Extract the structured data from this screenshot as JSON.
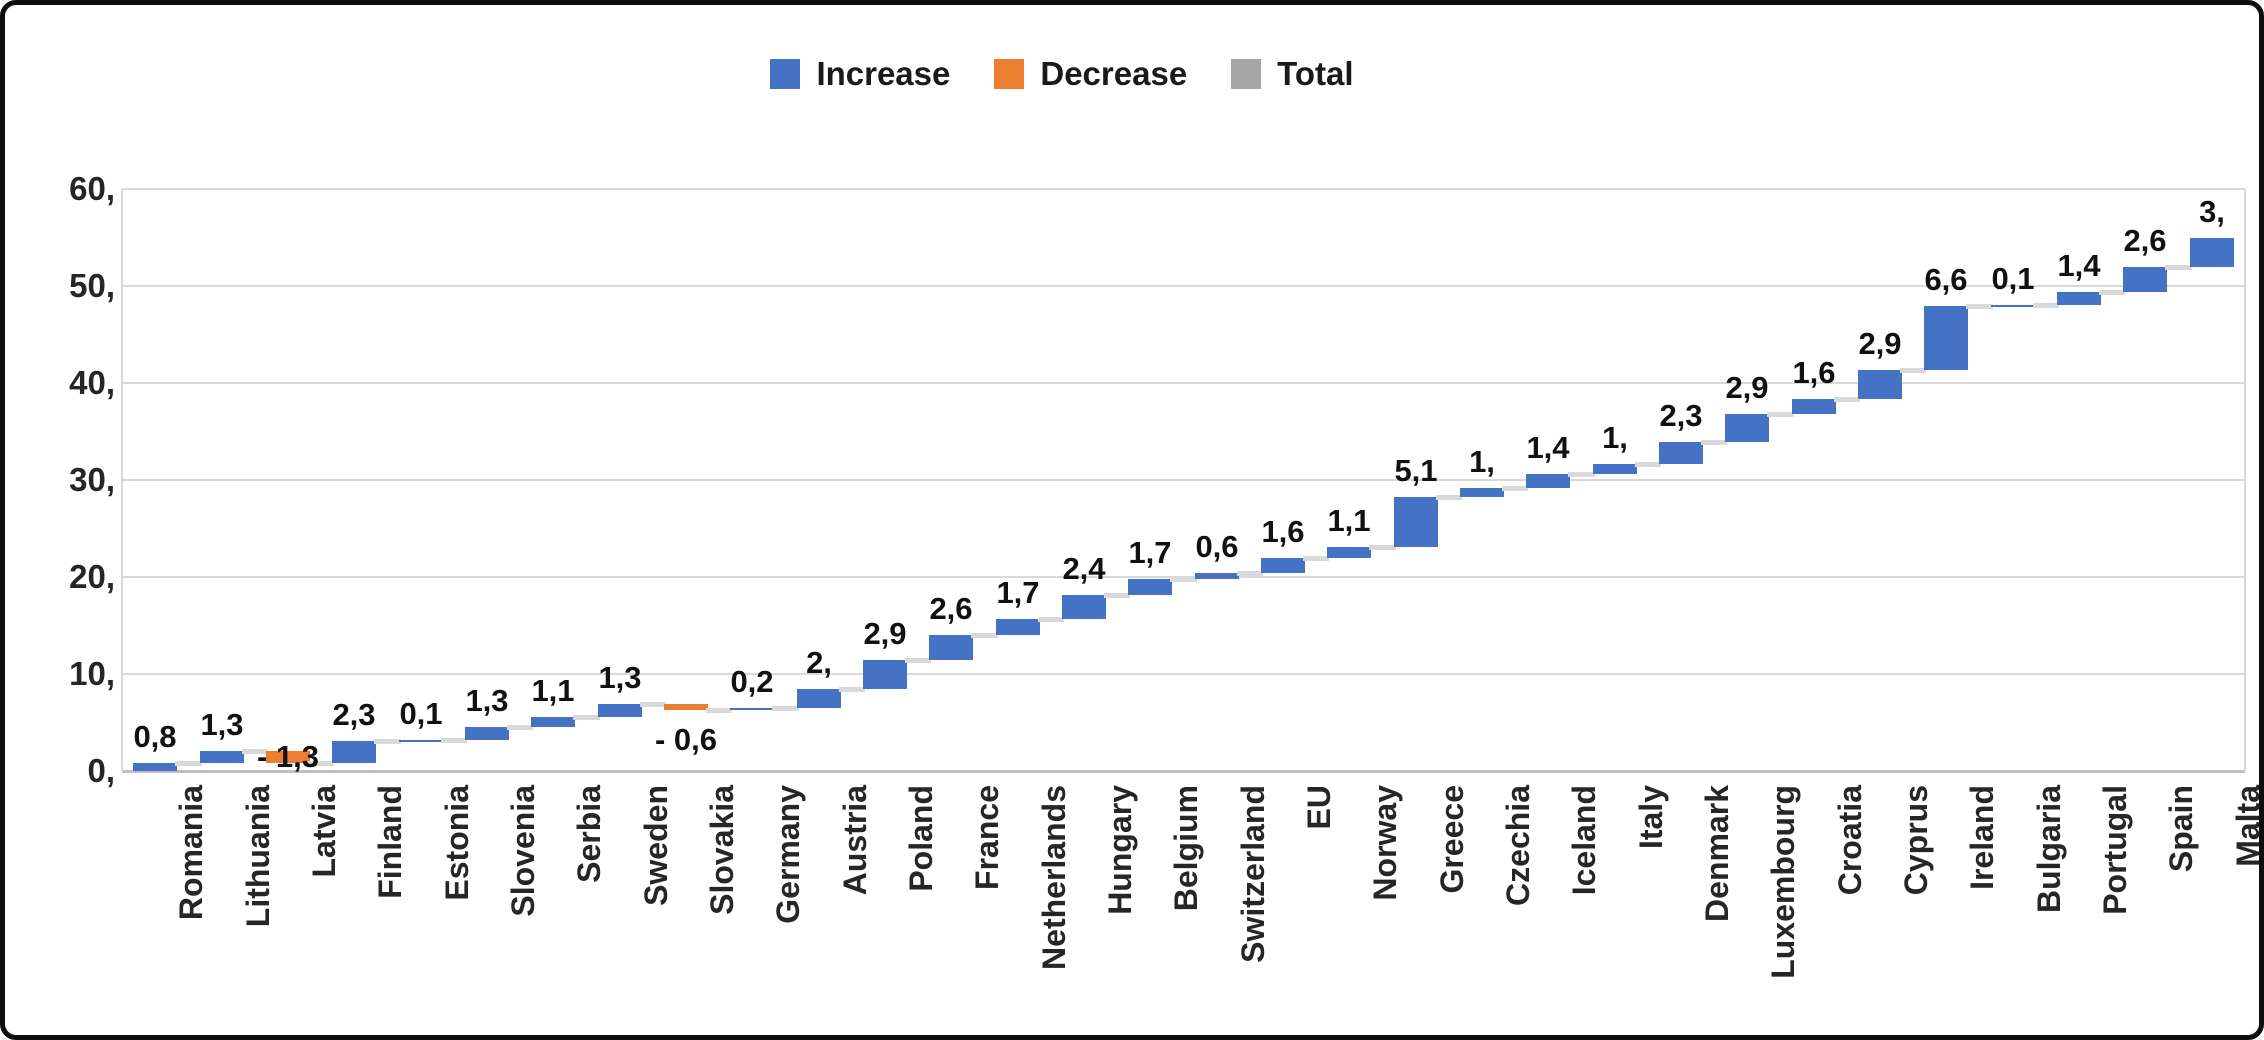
{
  "legend": {
    "items": [
      {
        "label": "Increase",
        "color": "#4472C4"
      },
      {
        "label": "Decrease",
        "color": "#ED7D31"
      },
      {
        "label": "Total",
        "color": "#A5A5A5"
      }
    ]
  },
  "y_axis": {
    "ticks": [
      {
        "label": "60,",
        "value": 60
      },
      {
        "label": "50,",
        "value": 50
      },
      {
        "label": "40,",
        "value": 40
      },
      {
        "label": "30,",
        "value": 30
      },
      {
        "label": "20,",
        "value": 20
      },
      {
        "label": "10,",
        "value": 10
      },
      {
        "label": "0,",
        "value": 0
      }
    ]
  },
  "colors": {
    "increase": "#4472C4",
    "decrease": "#ED7D31",
    "total": "#A5A5A5",
    "gridline": "#d9d9d9",
    "connector": "#d9d9d9",
    "axis_line": "#bfbfbf"
  },
  "chart_data": {
    "type": "bar",
    "subtype": "waterfall",
    "title": "",
    "xlabel": "",
    "ylabel": "",
    "ylim": [
      0,
      60
    ],
    "grid": true,
    "legend_position": "top-center",
    "legend_entries": [
      "Increase",
      "Decrease",
      "Total"
    ],
    "categories": [
      "Romania",
      "Lithuania",
      "Latvia",
      "Finland",
      "Estonia",
      "Slovenia",
      "Serbia",
      "Sweden",
      "Slovakia",
      "Germany",
      "Austria",
      "Poland",
      "France",
      "Netherlands",
      "Hungary",
      "Belgium",
      "Switzerland",
      "EU",
      "Norway",
      "Greece",
      "Czechia",
      "Iceland",
      "Italy",
      "Denmark",
      "Luxembourg",
      "Croatia",
      "Cyprus",
      "Ireland",
      "Bulgaria",
      "Portugal",
      "Spain",
      "Malta"
    ],
    "items": [
      {
        "category": "Romania",
        "value": 0.8,
        "label": "0,8",
        "series": "Increase"
      },
      {
        "category": "Lithuania",
        "value": 1.3,
        "label": "1,3",
        "series": "Increase"
      },
      {
        "category": "Latvia",
        "value": -1.3,
        "label": "- 1,3",
        "series": "Decrease"
      },
      {
        "category": "Finland",
        "value": 2.3,
        "label": "2,3",
        "series": "Increase"
      },
      {
        "category": "Estonia",
        "value": 0.1,
        "label": "0,1",
        "series": "Increase"
      },
      {
        "category": "Slovenia",
        "value": 1.3,
        "label": "1,3",
        "series": "Increase"
      },
      {
        "category": "Serbia",
        "value": 1.1,
        "label": "1,1",
        "series": "Increase"
      },
      {
        "category": "Sweden",
        "value": 1.3,
        "label": "1,3",
        "series": "Increase"
      },
      {
        "category": "Slovakia",
        "value": -0.6,
        "label": "- 0,6",
        "series": "Decrease"
      },
      {
        "category": "Germany",
        "value": 0.2,
        "label": "0,2",
        "series": "Increase"
      },
      {
        "category": "Austria",
        "value": 2.0,
        "label": "2,",
        "series": "Increase"
      },
      {
        "category": "Poland",
        "value": 2.9,
        "label": "2,9",
        "series": "Increase"
      },
      {
        "category": "France",
        "value": 2.6,
        "label": "2,6",
        "series": "Increase"
      },
      {
        "category": "Netherlands",
        "value": 1.7,
        "label": "1,7",
        "series": "Increase"
      },
      {
        "category": "Hungary",
        "value": 2.4,
        "label": "2,4",
        "series": "Increase"
      },
      {
        "category": "Belgium",
        "value": 1.7,
        "label": "1,7",
        "series": "Increase"
      },
      {
        "category": "Switzerland",
        "value": 0.6,
        "label": "0,6",
        "series": "Increase"
      },
      {
        "category": "EU",
        "value": 1.6,
        "label": "1,6",
        "series": "Increase"
      },
      {
        "category": "Norway",
        "value": 1.1,
        "label": "1,1",
        "series": "Increase"
      },
      {
        "category": "Greece",
        "value": 5.1,
        "label": "5,1",
        "series": "Increase"
      },
      {
        "category": "Czechia",
        "value": 1.0,
        "label": "1,",
        "series": "Increase"
      },
      {
        "category": "Iceland",
        "value": 1.4,
        "label": "1,4",
        "series": "Increase"
      },
      {
        "category": "Italy",
        "value": 1.0,
        "label": "1,",
        "series": "Increase"
      },
      {
        "category": "Denmark",
        "value": 2.3,
        "label": "2,3",
        "series": "Increase"
      },
      {
        "category": "Luxembourg",
        "value": 2.9,
        "label": "2,9",
        "series": "Increase"
      },
      {
        "category": "Croatia",
        "value": 1.6,
        "label": "1,6",
        "series": "Increase"
      },
      {
        "category": "Cyprus",
        "value": 2.9,
        "label": "2,9",
        "series": "Increase"
      },
      {
        "category": "Ireland",
        "value": 6.6,
        "label": "6,6",
        "series": "Increase"
      },
      {
        "category": "Bulgaria",
        "value": 0.1,
        "label": "0,1",
        "series": "Increase"
      },
      {
        "category": "Portugal",
        "value": 1.4,
        "label": "1,4",
        "series": "Increase"
      },
      {
        "category": "Spain",
        "value": 2.6,
        "label": "2,6",
        "series": "Increase"
      },
      {
        "category": "Malta",
        "value": 3.0,
        "label": "3,",
        "series": "Increase"
      }
    ]
  }
}
